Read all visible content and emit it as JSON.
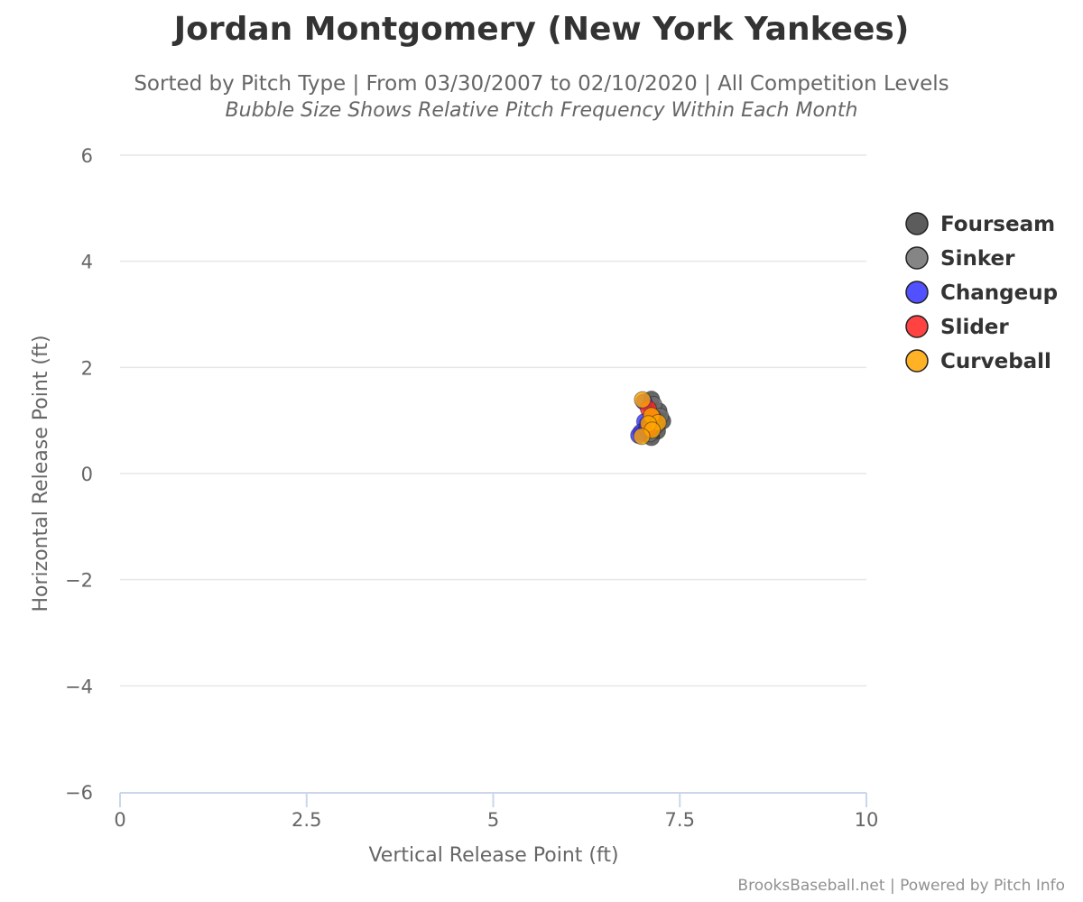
{
  "title": "Jordan Montgomery (New York Yankees)",
  "subtitle": "Sorted by Pitch Type | From 03/30/2007 to 02/10/2020 | All Competition Levels",
  "subtitle2": "Bubble Size Shows Relative Pitch Frequency Within Each Month",
  "credits": "BrooksBaseball.net | Powered by Pitch Info",
  "chart_data": {
    "type": "scatter",
    "title": "Jordan Montgomery (New York Yankees)",
    "xlabel": "Vertical Release Point (ft)",
    "ylabel": "Horizontal Release Point (ft)",
    "xlim": [
      0,
      10
    ],
    "ylim": [
      -6,
      6
    ],
    "x_ticks": [
      0,
      2.5,
      5,
      7.5,
      10
    ],
    "x_tick_labels": [
      "0",
      "2.5",
      "5",
      "7.5",
      "10"
    ],
    "y_ticks": [
      6,
      4,
      2,
      0,
      -2,
      -4,
      -6
    ],
    "y_tick_labels": [
      "6",
      "4",
      "2",
      "0",
      "−2",
      "−4",
      "−6"
    ],
    "grid": true,
    "legend_position": "right",
    "series": [
      {
        "name": "Fourseam",
        "color": "#404040",
        "points": [
          [
            7.12,
            1.4
          ],
          [
            7.22,
            1.18
          ],
          [
            7.27,
            0.99
          ],
          [
            7.2,
            0.8
          ],
          [
            7.12,
            0.68
          ],
          [
            7.06,
            0.93
          ]
        ]
      },
      {
        "name": "Sinker",
        "color": "#707070",
        "points": [
          [
            7.15,
            1.3
          ],
          [
            7.24,
            1.08
          ],
          [
            7.18,
            0.9
          ],
          [
            7.1,
            0.75
          ]
        ]
      },
      {
        "name": "Changeup",
        "color": "#3333ff",
        "points": [
          [
            7.02,
            1.35
          ],
          [
            7.03,
            0.98
          ],
          [
            6.98,
            0.78
          ],
          [
            6.95,
            0.72
          ],
          [
            7.06,
            0.84
          ]
        ]
      },
      {
        "name": "Slider",
        "color": "#ff2222",
        "points": [
          [
            7.08,
            1.22
          ],
          [
            7.14,
            1.06
          ],
          [
            7.1,
            0.86
          ]
        ]
      },
      {
        "name": "Curveball",
        "color": "#ffa500",
        "points": [
          [
            7.0,
            1.39
          ],
          [
            7.12,
            1.09
          ],
          [
            7.21,
            0.96
          ],
          [
            7.08,
            0.94
          ],
          [
            7.13,
            0.82
          ],
          [
            6.99,
            0.7
          ]
        ]
      }
    ]
  }
}
